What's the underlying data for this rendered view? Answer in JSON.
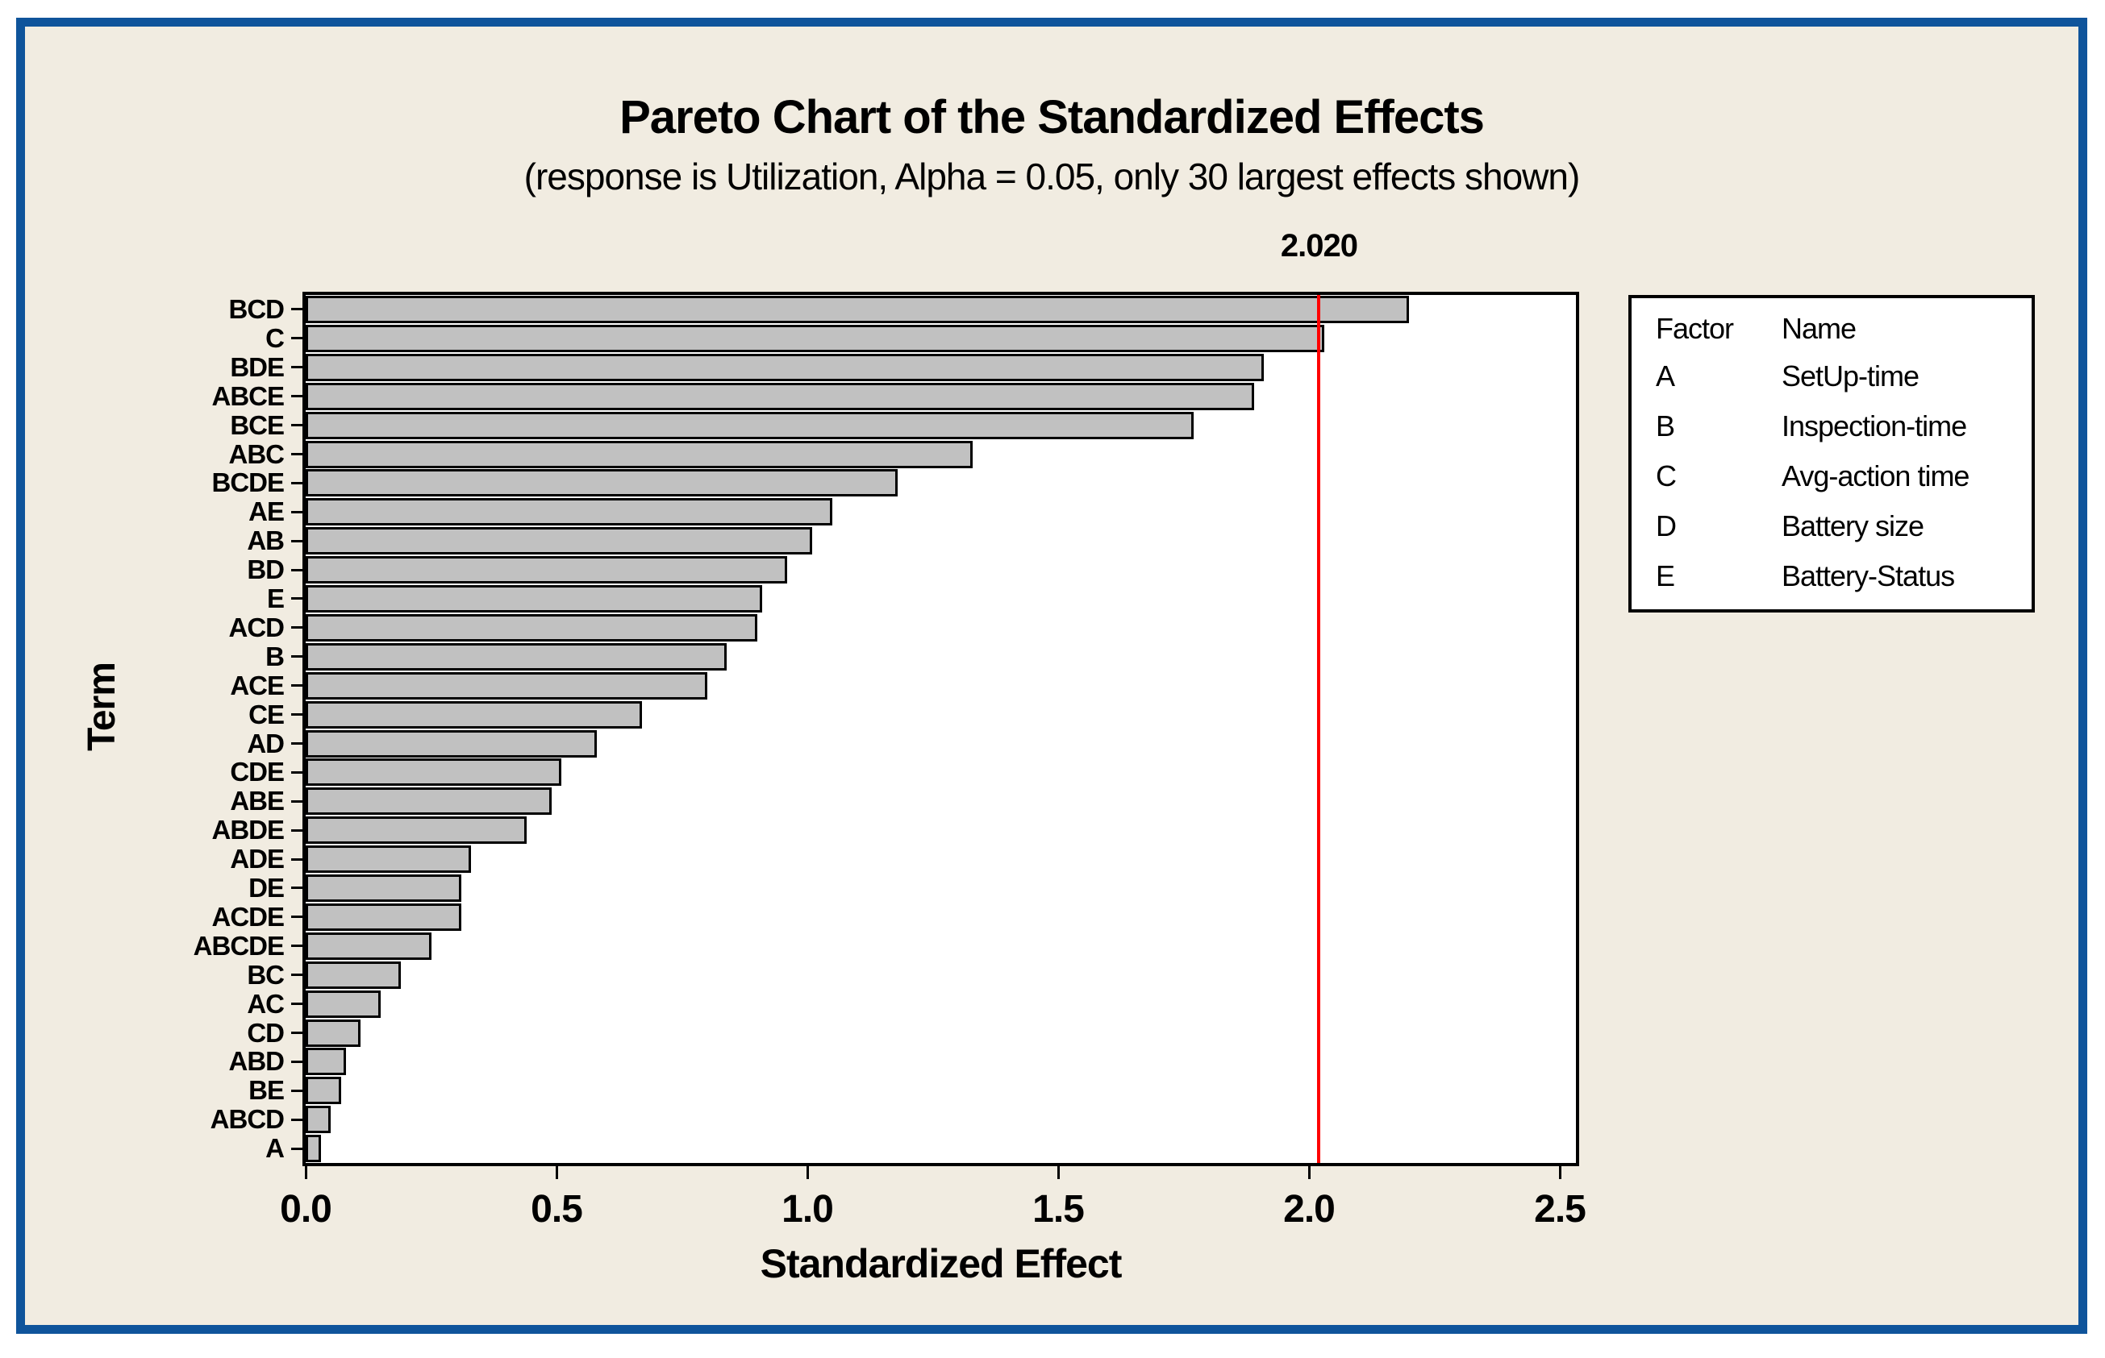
{
  "chart_data": {
    "type": "bar",
    "orientation": "horizontal",
    "title": "Pareto Chart of the Standardized Effects",
    "subtitle": "(response is Utilization, Alpha = 0.05, only 30 largest effects shown)",
    "xlabel": "Standardized Effect",
    "ylabel": "Term",
    "categories": [
      "BCD",
      "C",
      "BDE",
      "ABCE",
      "BCE",
      "ABC",
      "BCDE",
      "AE",
      "AB",
      "BD",
      "E",
      "ACD",
      "B",
      "ACE",
      "CE",
      "AD",
      "CDE",
      "ABE",
      "ABDE",
      "ADE",
      "DE",
      "ACDE",
      "ABCDE",
      "BC",
      "AC",
      "CD",
      "ABD",
      "BE",
      "ABCD",
      "A"
    ],
    "values": [
      2.2,
      2.03,
      1.91,
      1.89,
      1.77,
      1.33,
      1.18,
      1.05,
      1.01,
      0.96,
      0.91,
      0.9,
      0.84,
      0.8,
      0.67,
      0.58,
      0.51,
      0.49,
      0.44,
      0.33,
      0.31,
      0.31,
      0.25,
      0.19,
      0.15,
      0.11,
      0.08,
      0.07,
      0.05,
      0.03
    ],
    "xlim": [
      0,
      2.53
    ],
    "x_ticks": [
      "0.0",
      "0.5",
      "1.0",
      "1.5",
      "2.0",
      "2.5"
    ],
    "x_tick_values": [
      0,
      0.5,
      1.0,
      1.5,
      2.0,
      2.5
    ],
    "grid": false,
    "reference_line": {
      "value": 2.02,
      "label": "2.020",
      "color": "#FF0000"
    },
    "legend": {
      "position": "right",
      "headers": [
        "Factor",
        "Name"
      ],
      "rows": [
        [
          "A",
          "SetUp-time"
        ],
        [
          "B",
          "Inspection-time"
        ],
        [
          "C",
          "Avg-action time"
        ],
        [
          "D",
          "Battery size"
        ],
        [
          "E",
          "Battery-Status"
        ]
      ]
    },
    "colors": {
      "bar_fill": "#C1C1C1",
      "bar_border": "#000000",
      "plot_bg": "#FFFFFF",
      "plot_frame": "#000000",
      "panel_bg": "#F1ECE1",
      "panel_border": "#0F549B",
      "reference_line": "#FF0000",
      "text": "#000000"
    }
  }
}
